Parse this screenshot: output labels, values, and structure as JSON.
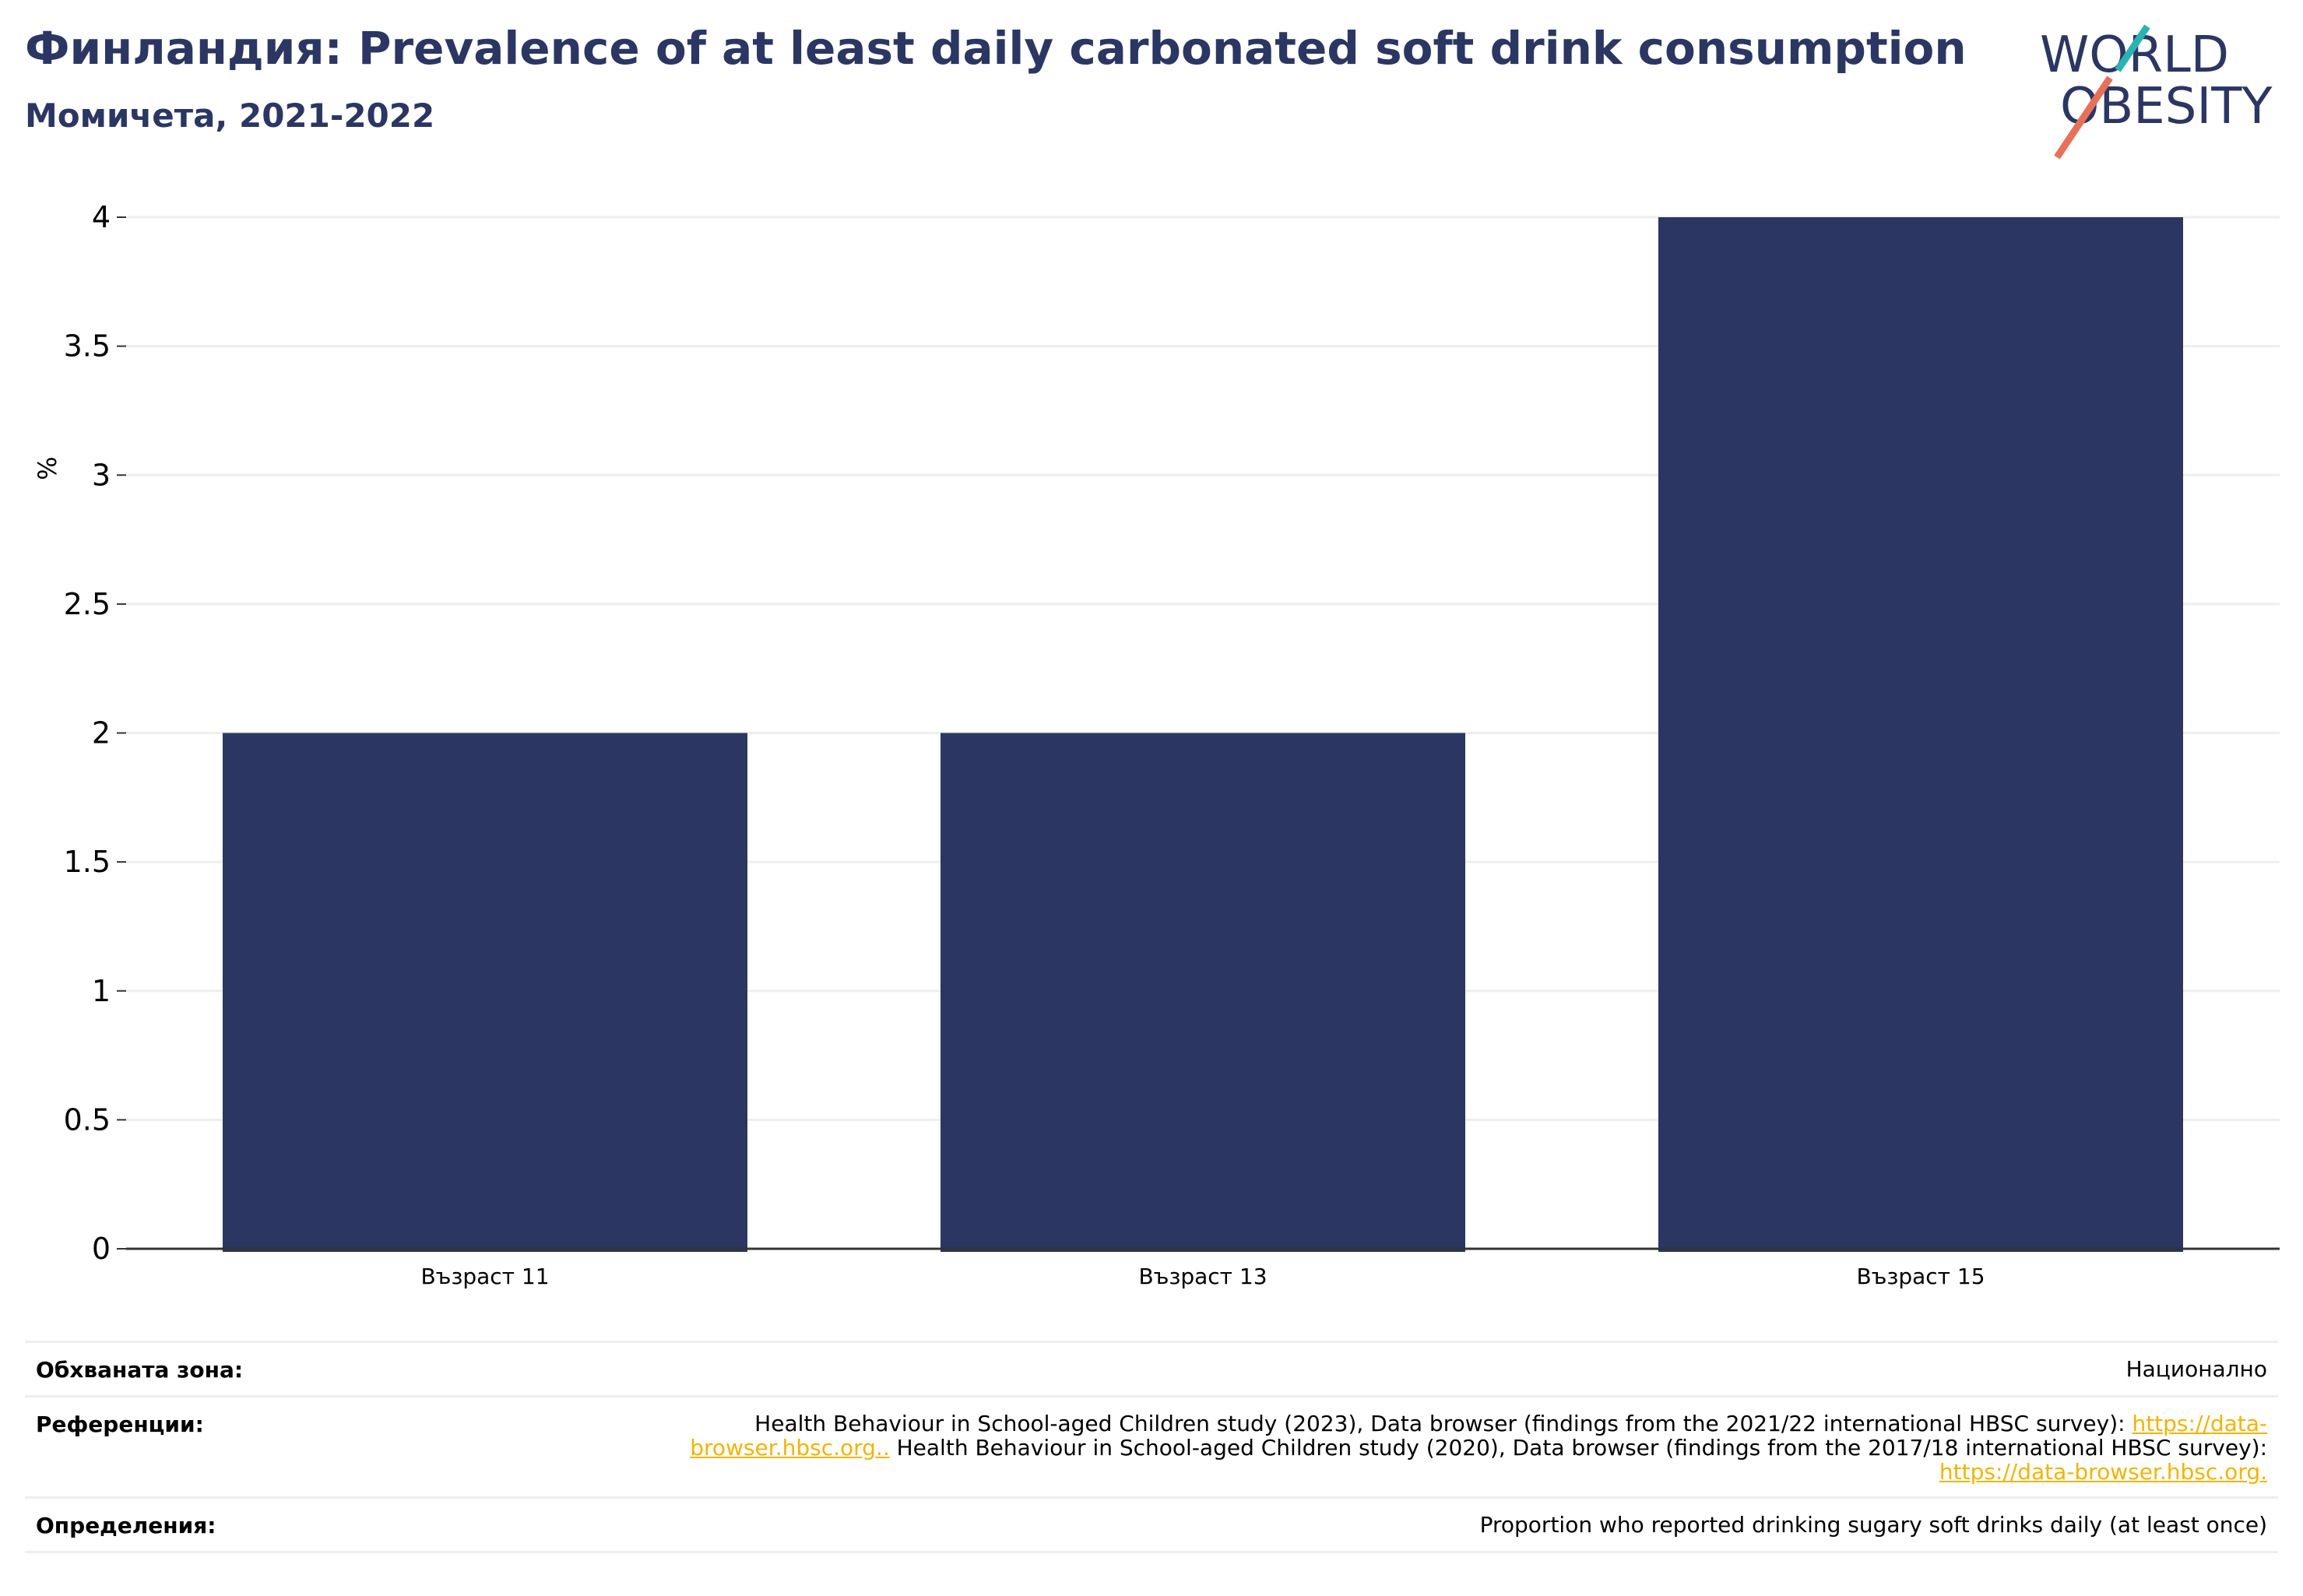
{
  "header": {
    "title": "Финландия: Prevalence of at least daily carbonated soft drink consumption",
    "subtitle": "Момичета, 2021-2022"
  },
  "logo": {
    "line1": "WORLD",
    "line2": "OBESITY",
    "text_color": "#2b3663",
    "accent_teal": "#2bb3b1",
    "accent_coral": "#e8705a"
  },
  "chart_data": {
    "type": "bar",
    "categories": [
      "Възраст 11",
      "Възраст 13",
      "Възраст 15"
    ],
    "values": [
      2,
      2,
      4
    ],
    "ylabel": "%",
    "xlabel": "",
    "ylim": [
      0,
      4
    ],
    "yticks": [
      0,
      0.5,
      1,
      1.5,
      2,
      2.5,
      3,
      3.5,
      4
    ],
    "ytick_labels": [
      "0",
      "0.5",
      "1",
      "1.5",
      "2",
      "2.5",
      "3",
      "3.5",
      "4"
    ],
    "grid": true,
    "bar_color": "#2b3663"
  },
  "footer": {
    "coverage_label": "Обхваната зона:",
    "coverage_value": "Национално",
    "references_label": "Референции:",
    "ref1_text": "Health Behaviour in School-aged Children study (2023), Data browser (findings from the 2021/22 international HBSC survey): ",
    "ref1_link": "https://data-browser.hbsc.org..",
    "ref2_text": " Health Behaviour in School-aged Children study (2020), Data browser (findings from the 2017/18 international HBSC survey): ",
    "ref2_link": "https://data-browser.hbsc.org.",
    "definitions_label": "Определения:",
    "definitions_value": "Proportion who reported drinking sugary soft drinks daily (at least once)"
  },
  "colors": {
    "title": "#2b3663",
    "link": "#f2b400",
    "grid": "#eeeeee"
  }
}
